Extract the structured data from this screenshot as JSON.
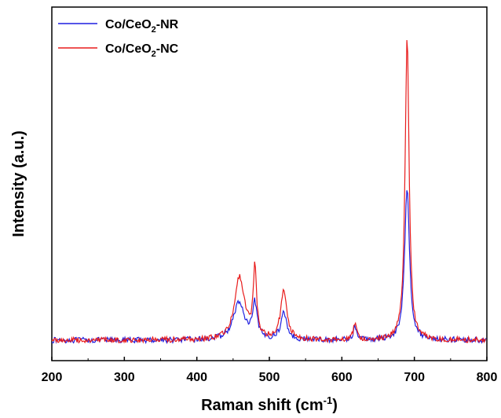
{
  "chart_data": {
    "type": "line",
    "title": "",
    "xlabel": "Raman shift (cm",
    "xlabel_sup": "-1",
    "xlabel_end": ")",
    "ylabel": "Intensity (a.u.)",
    "xlim": [
      200,
      800
    ],
    "ylim": [
      0,
      1
    ],
    "xticks": [
      200,
      300,
      400,
      500,
      600,
      700,
      800
    ],
    "grid": false,
    "legend_position": "top-left",
    "y_tick_labels": false,
    "series": [
      {
        "name": "Co/CeO2-NR",
        "label_prefix": "Co/CeO",
        "label_sub": "2",
        "label_suffix": "-NR",
        "color": "#1f1fe0",
        "baseline": 0.02,
        "peaks": [
          {
            "center": 458,
            "height": 0.12,
            "width": 9
          },
          {
            "center": 480,
            "height": 0.11,
            "width": 3.5
          },
          {
            "center": 520,
            "height": 0.085,
            "width": 5
          },
          {
            "center": 618,
            "height": 0.04,
            "width": 3
          },
          {
            "center": 690,
            "height": 0.49,
            "width": 4
          }
        ]
      },
      {
        "name": "Co/CeO2-NC",
        "label_prefix": "Co/CeO",
        "label_sub": "2",
        "label_suffix": "-NC",
        "color": "#e81c1c",
        "baseline": 0.02,
        "peaks": [
          {
            "center": 459,
            "height": 0.2,
            "width": 8
          },
          {
            "center": 480,
            "height": 0.22,
            "width": 2.8
          },
          {
            "center": 520,
            "height": 0.16,
            "width": 5
          },
          {
            "center": 618,
            "height": 0.05,
            "width": 2.8
          },
          {
            "center": 690,
            "height": 0.98,
            "width": 3.2
          }
        ]
      }
    ]
  }
}
